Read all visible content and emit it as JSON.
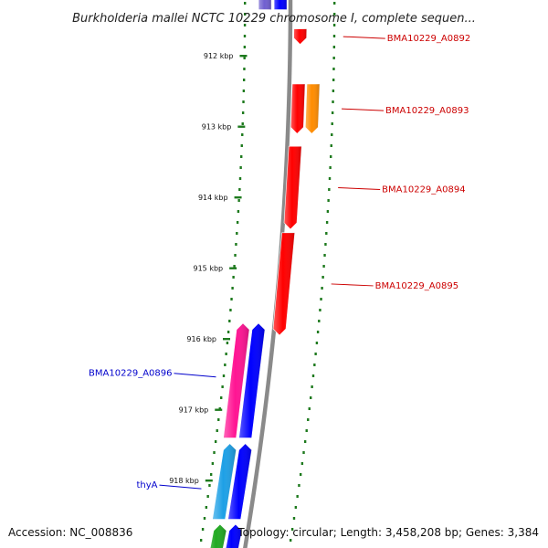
{
  "title": "Burkholderia mallei NCTC 10229 chromosome I, complete sequen...",
  "accession": "Accession: NC_008836",
  "topology": "Topology: circular; Length: 3,458,208 bp; Genes: 3,384",
  "ticks": [
    {
      "label": "912 kbp",
      "kbp": 912
    },
    {
      "label": "913 kbp",
      "kbp": 913
    },
    {
      "label": "914 kbp",
      "kbp": 914
    },
    {
      "label": "915 kbp",
      "kbp": 915
    },
    {
      "label": "916 kbp",
      "kbp": 916
    },
    {
      "label": "917 kbp",
      "kbp": 917
    },
    {
      "label": "918 kbp",
      "kbp": 918
    }
  ],
  "genes": [
    {
      "label": "BMA10229_A0892",
      "strand": "reverse",
      "color": "#ff0000",
      "start_kbp": 911.62,
      "end_kbp": 911.84,
      "track": 0
    },
    {
      "label": "BMA10229_A0893",
      "strand": "reverse",
      "color": "#ff0000",
      "start_kbp": 912.4,
      "end_kbp": 913.1,
      "track": 0
    },
    {
      "label": "",
      "strand": "reverse",
      "color": "#ff8c00",
      "start_kbp": 912.4,
      "end_kbp": 913.1,
      "track": 1
    },
    {
      "label": "BMA10229_A0894",
      "strand": "reverse",
      "color": "#ff0000",
      "start_kbp": 913.28,
      "end_kbp": 914.45,
      "track": 0
    },
    {
      "label": "BMA10229_A0895",
      "strand": "reverse",
      "color": "#ff0000",
      "start_kbp": 914.5,
      "end_kbp": 915.95,
      "track": 0
    },
    {
      "label": "BMA10229_A0896",
      "strand": "forward",
      "color": "#ff1493",
      "start_kbp": 915.78,
      "end_kbp": 917.4,
      "track": 1
    },
    {
      "label": "",
      "strand": "forward",
      "color": "#0000ff",
      "start_kbp": 915.78,
      "end_kbp": 917.4,
      "track": 0
    },
    {
      "label": "thyA",
      "strand": "forward",
      "color": "#1ea0e6",
      "start_kbp": 917.48,
      "end_kbp": 918.55,
      "track": 1
    },
    {
      "label": "",
      "strand": "forward",
      "color": "#0000ff",
      "start_kbp": 917.48,
      "end_kbp": 918.55,
      "track": 0
    },
    {
      "label": "",
      "strand": "forward",
      "color": "#22aa22",
      "start_kbp": 918.62,
      "end_kbp": 919.2,
      "track": 1
    },
    {
      "label": "",
      "strand": "forward",
      "color": "#0000ff",
      "start_kbp": 918.62,
      "end_kbp": 919.2,
      "track": 0
    },
    {
      "label": "",
      "strand": "forward",
      "color": "#0000ff",
      "start_kbp": 910.9,
      "end_kbp": 911.35,
      "track": 0
    },
    {
      "label": "",
      "strand": "forward",
      "color": "#7060d0",
      "start_kbp": 910.9,
      "end_kbp": 911.35,
      "track": 1
    }
  ],
  "colors": {
    "backbone": "#8a8a8a",
    "tick_dash": "#1e7a1e",
    "label_forward": "#0000cc",
    "label_reverse": "#cc0000"
  }
}
